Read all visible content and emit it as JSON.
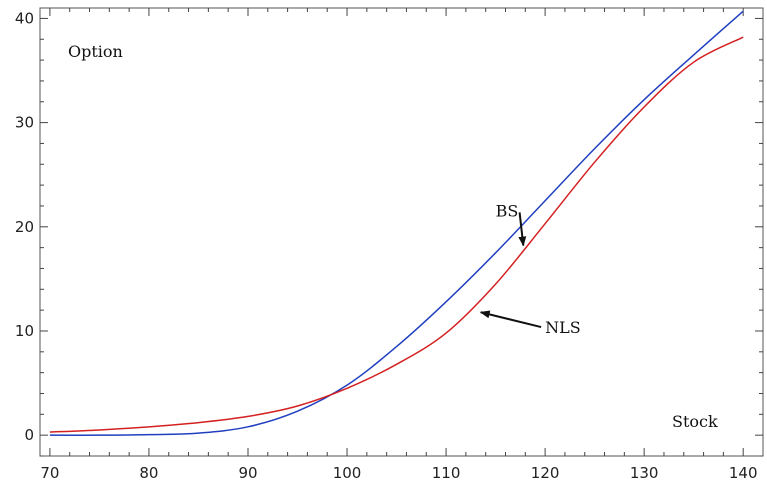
{
  "chart_data": {
    "type": "line",
    "title": "",
    "xlabel": "Stock",
    "ylabel": "Option",
    "xlim": [
      69,
      142
    ],
    "ylim": [
      -2,
      41
    ],
    "x_ticks": [
      70,
      80,
      90,
      100,
      110,
      120,
      130,
      140
    ],
    "y_ticks": [
      0,
      10,
      20,
      30,
      40
    ],
    "grid": false,
    "series": [
      {
        "name": "BS",
        "color": "#1f3fbf",
        "x": [
          70,
          75,
          80,
          85,
          90,
          95,
          100,
          105,
          110,
          115,
          120,
          125,
          130,
          135,
          140
        ],
        "y": [
          0.0,
          0.0,
          0.05,
          0.2,
          0.8,
          2.3,
          4.8,
          8.5,
          12.8,
          17.5,
          22.5,
          27.5,
          32.2,
          36.5,
          40.7
        ]
      },
      {
        "name": "NLS",
        "color": "#d42020",
        "x": [
          70,
          75,
          80,
          85,
          90,
          95,
          100,
          105,
          110,
          115,
          120,
          125,
          130,
          135,
          140
        ],
        "y": [
          0.3,
          0.5,
          0.8,
          1.2,
          1.8,
          2.8,
          4.5,
          6.8,
          9.8,
          14.5,
          20.3,
          26.2,
          31.5,
          35.8,
          38.2
        ]
      }
    ],
    "annotations": [
      {
        "text": "BS",
        "x": 115.0,
        "y": 21.0,
        "arrow_to": [
          117.8,
          18.2
        ]
      },
      {
        "text": "NLS",
        "x": 120.0,
        "y": 9.8,
        "arrow_to": [
          113.5,
          11.8
        ]
      }
    ]
  }
}
